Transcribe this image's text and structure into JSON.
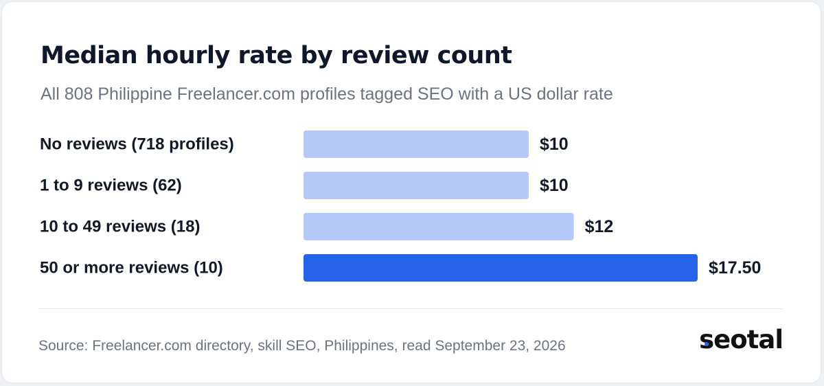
{
  "chart_data": {
    "type": "bar",
    "orientation": "horizontal",
    "title": "Median hourly rate by review count",
    "subtitle": "All 808 Philippine Freelancer.com profiles tagged SEO with a US dollar rate",
    "categories": [
      "No reviews (718 profiles)",
      "1 to 9 reviews (62)",
      "10 to 49 reviews (18)",
      "50 or more reviews (10)"
    ],
    "values": [
      10,
      10,
      12,
      17.5
    ],
    "value_labels": [
      "$10",
      "$10",
      "$12",
      "$17.50"
    ],
    "xlim": [
      0,
      17.5
    ],
    "grid": false,
    "highlight_index": 3,
    "colors": {
      "bar": "#b3c9f7",
      "highlight": "#2563eb"
    }
  },
  "footer": {
    "source": "Source: Freelancer.com directory, skill SEO, Philippines, read September 23, 2026",
    "logo": "seotal"
  }
}
